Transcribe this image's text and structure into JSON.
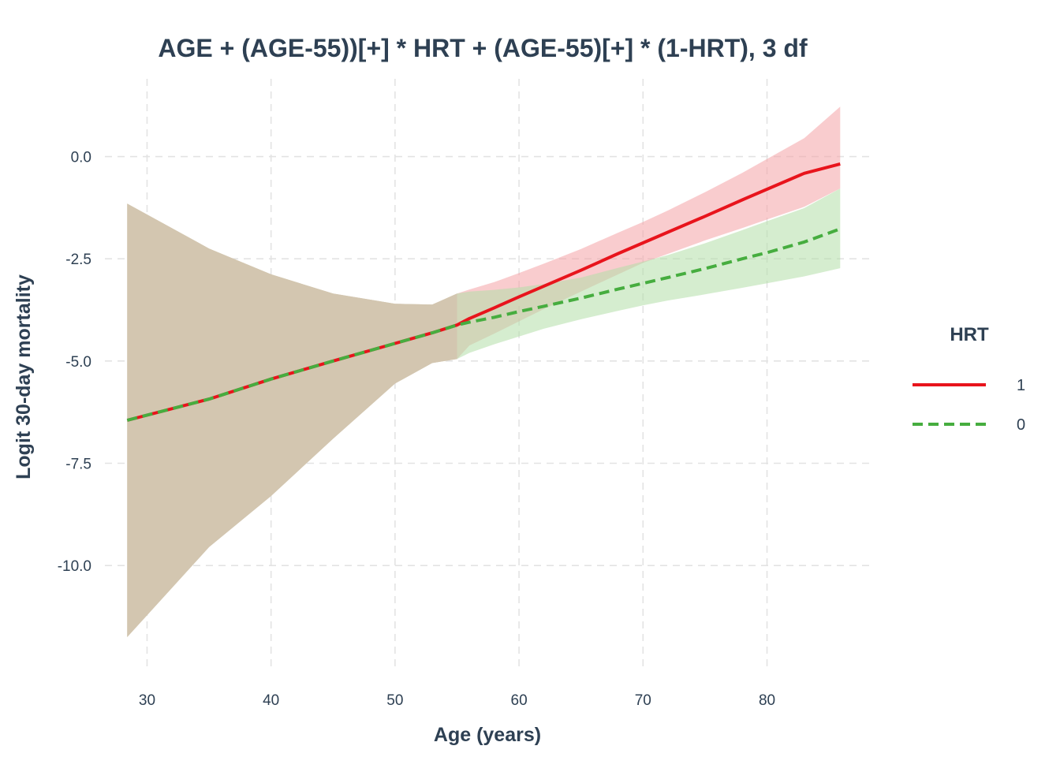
{
  "chart_data": {
    "type": "line",
    "title": "AGE + (AGE-55))[+] * HRT + (AGE-55)[+] * (1-HRT), 3 df",
    "xlabel": "Age (years)",
    "ylabel": "Logit 30-day mortality",
    "xlim": [
      26.6,
      88.3
    ],
    "ylim": [
      -12.6,
      1.9
    ],
    "x_ticks": [
      30,
      40,
      50,
      60,
      70,
      80
    ],
    "x_tick_labels": [
      "30",
      "40",
      "50",
      "60",
      "70",
      "80"
    ],
    "y_ticks": [
      0,
      -2.5,
      -5,
      -7.5,
      -10
    ],
    "y_tick_labels": [
      "0.0",
      "-2.5",
      "-5.0",
      "-7.5",
      "-10.0"
    ],
    "grid": true,
    "legend": {
      "title": "HRT",
      "position": "right"
    },
    "series": [
      {
        "name": "1",
        "color": "#e8141c",
        "band_color": "#f4a3a6",
        "dash": "solid",
        "x": [
          28.4,
          35,
          40,
          45,
          50,
          53,
          55,
          56,
          58,
          60,
          62,
          65,
          68,
          70,
          72,
          75,
          78,
          80,
          83,
          85.9
        ],
        "y": [
          -6.45,
          -5.93,
          -5.44,
          -5.0,
          -4.57,
          -4.31,
          -4.12,
          -3.96,
          -3.7,
          -3.43,
          -3.17,
          -2.78,
          -2.37,
          -2.11,
          -1.85,
          -1.46,
          -1.06,
          -0.8,
          -0.41,
          -0.18
        ],
        "lower": [
          -11.75,
          -9.55,
          -8.3,
          -6.9,
          -5.55,
          -5.05,
          -4.95,
          -4.62,
          -4.33,
          -4.03,
          -3.73,
          -3.3,
          -2.88,
          -2.6,
          -2.38,
          -2.05,
          -1.75,
          -1.54,
          -1.23,
          -0.78
        ],
        "upper": [
          -1.15,
          -2.25,
          -2.88,
          -3.35,
          -3.6,
          -3.62,
          -3.35,
          -3.25,
          -3.07,
          -2.85,
          -2.62,
          -2.26,
          -1.86,
          -1.6,
          -1.32,
          -0.87,
          -0.4,
          -0.06,
          0.45,
          1.22
        ]
      },
      {
        "name": "0",
        "color": "#46ad3f",
        "band_color": "#b2dfa8",
        "dash": "dashed",
        "x": [
          28.4,
          35,
          40,
          45,
          50,
          53,
          55,
          56,
          58,
          60,
          62,
          65,
          68,
          70,
          72,
          75,
          78,
          80,
          83,
          85.9
        ],
        "y": [
          -6.45,
          -5.93,
          -5.44,
          -5.0,
          -4.57,
          -4.31,
          -4.12,
          -4.05,
          -3.93,
          -3.79,
          -3.66,
          -3.46,
          -3.24,
          -3.1,
          -2.96,
          -2.74,
          -2.5,
          -2.35,
          -2.09,
          -1.77
        ],
        "lower": [
          -11.75,
          -9.55,
          -8.3,
          -6.9,
          -5.55,
          -5.05,
          -4.95,
          -4.8,
          -4.59,
          -4.4,
          -4.21,
          -3.98,
          -3.77,
          -3.64,
          -3.52,
          -3.37,
          -3.21,
          -3.1,
          -2.93,
          -2.73
        ],
        "upper": [
          -1.15,
          -2.25,
          -2.88,
          -3.35,
          -3.6,
          -3.62,
          -3.35,
          -3.3,
          -3.26,
          -3.2,
          -3.12,
          -2.96,
          -2.72,
          -2.57,
          -2.41,
          -2.12,
          -1.8,
          -1.58,
          -1.26,
          -0.78
        ]
      }
    ],
    "overlap_band_color": "#d3c6b0"
  }
}
